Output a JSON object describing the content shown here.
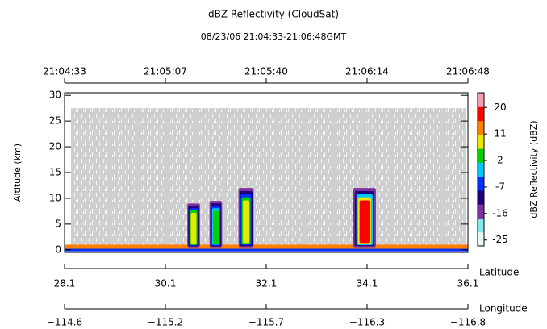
{
  "chart_data": {
    "type": "reflectivity",
    "title": "dBZ Reflectivity (CloudSat)",
    "subtitle": "08/23/06 21:04:33-21:06:48GMT",
    "ylabel": "Altitude (km)",
    "xlabel": "Latitude",
    "x2label": "Longitude",
    "colorbar_label": "dBZ Reflectivity (dBZ)",
    "time_ticks": [
      "21:04:33",
      "21:05:07",
      "21:05:40",
      "21:06:14",
      "21:06:48"
    ],
    "xlim": [
      28.1,
      36.1
    ],
    "xticks": [
      28.1,
      30.1,
      32.1,
      34.1,
      36.1
    ],
    "lon_ticks": [
      "−114.6",
      "−115.2",
      "−115.7",
      "−116.3",
      "−116.8"
    ],
    "ylim": [
      -0.5,
      30.5
    ],
    "yticks": [
      0,
      5,
      10,
      15,
      20,
      25,
      30
    ],
    "clim": [
      -27,
      25
    ],
    "cticks": [
      20,
      11,
      2,
      -7,
      -16,
      -25
    ],
    "colormap": [
      "#e8f8f8",
      "#80e8e8",
      "#8030a0",
      "#20007a",
      "#0030ff",
      "#00c8ff",
      "#00d000",
      "#e8e800",
      "#ff8000",
      "#ff0000",
      "#f0a0b0"
    ],
    "cells": [
      {
        "lat": 30.66,
        "width": 0.25,
        "top": 9,
        "dbz": 8
      },
      {
        "lat": 31.1,
        "width": 0.25,
        "top": 9.5,
        "dbz": 5
      },
      {
        "lat": 31.7,
        "width": 0.3,
        "top": 12,
        "dbz": 10
      },
      {
        "lat": 34.05,
        "width": 0.45,
        "top": 12,
        "dbz": 16
      }
    ]
  }
}
